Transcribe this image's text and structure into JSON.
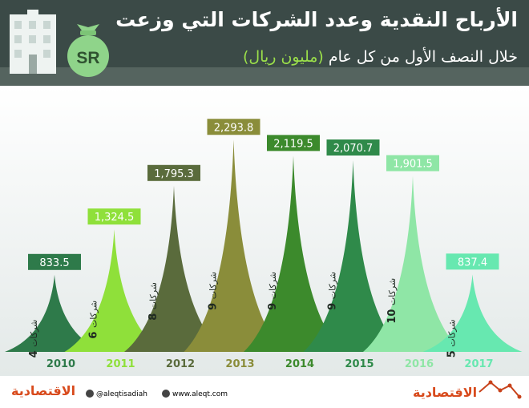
{
  "header": {
    "title": "الأرباح النقدية وعدد الشركات التي وزعت",
    "subtitle": "خلال النصف الأول من كل عام",
    "subtitle_unit": "(مليون ريال)",
    "bag_label": "SR"
  },
  "colors": {
    "header_bg": "#3b4a47",
    "accent": "#9be04a",
    "year_label": "#2f6a32"
  },
  "chart_data": {
    "type": "area",
    "categories": [
      "2010",
      "2011",
      "2012",
      "2013",
      "2014",
      "2015",
      "2016",
      "2017"
    ],
    "values": [
      833.5,
      1324.5,
      1795.3,
      2293.8,
      2119.5,
      2070.7,
      1901.5,
      837.4
    ],
    "value_labels": [
      "833.5",
      "1,324.5",
      "1,795.3",
      "2,293.8",
      "2,119.5",
      "2,070.7",
      "1,901.5",
      "837.4"
    ],
    "companies": [
      {
        "count": "4",
        "word": "شركات"
      },
      {
        "count": "6",
        "word": "شركات"
      },
      {
        "count": "8",
        "word": "شركات"
      },
      {
        "count": "9",
        "word": "شركات"
      },
      {
        "count": "9",
        "word": "شركات"
      },
      {
        "count": "9",
        "word": "شركات"
      },
      {
        "count": "10",
        "word": "شركات"
      },
      {
        "count": "5",
        "word": "شركات"
      }
    ],
    "colors": [
      "#2e7a4a",
      "#8fe03a",
      "#5a6b3c",
      "#8a8d3a",
      "#3c8a2c",
      "#2f8a4a",
      "#8fe6a6",
      "#67e8b0"
    ],
    "ylim": [
      0,
      2400
    ],
    "grid": false,
    "legend": "none"
  },
  "footer": {
    "logo_left": "الاقتصادية",
    "twitter": "@aleqtisadiah",
    "website": "www.aleqt.com",
    "logo_right": "الاقتصادية"
  }
}
